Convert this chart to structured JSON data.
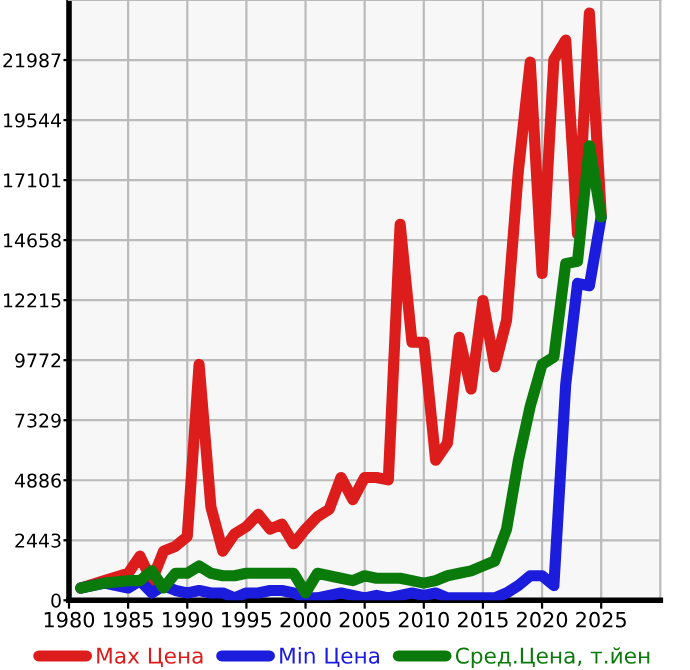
{
  "chart_data": {
    "type": "line",
    "x": [
      1981,
      1983,
      1985,
      1986,
      1987,
      1988,
      1989,
      1990,
      1991,
      1992,
      1993,
      1994,
      1995,
      1996,
      1997,
      1998,
      1999,
      2000,
      2001,
      2002,
      2003,
      2004,
      2005,
      2006,
      2007,
      2008,
      2009,
      2010,
      2011,
      2012,
      2013,
      2014,
      2015,
      2016,
      2017,
      2018,
      2019,
      2020,
      2021,
      2022,
      2023,
      2024,
      2025
    ],
    "series": [
      {
        "name": "Max Цена",
        "color": "#dd1c1c",
        "values": [
          500,
          800,
          1100,
          1800,
          800,
          2000,
          2200,
          2600,
          9600,
          3800,
          2000,
          2700,
          3000,
          3500,
          2900,
          3100,
          2300,
          2900,
          3400,
          3700,
          5000,
          4100,
          5000,
          5000,
          4900,
          15300,
          10500,
          10500,
          5700,
          6400,
          10700,
          8600,
          12200,
          9500,
          11400,
          17500,
          21900,
          13300,
          22000,
          22800,
          14900,
          23900,
          15700
        ]
      },
      {
        "name": "Min Цена",
        "color": "#1c1cdd",
        "values": [
          500,
          700,
          500,
          800,
          300,
          600,
          400,
          300,
          400,
          300,
          300,
          100,
          300,
          300,
          400,
          400,
          300,
          100,
          100,
          200,
          300,
          200,
          100,
          200,
          100,
          200,
          300,
          200,
          300,
          100,
          100,
          100,
          100,
          100,
          300,
          600,
          1000,
          1000,
          600,
          8800,
          12900,
          12800,
          15600
        ]
      },
      {
        "name": "Сред.Цена, т.йен",
        "color": "#0a7a0a",
        "values": [
          500,
          700,
          800,
          800,
          1200,
          500,
          1100,
          1100,
          1400,
          1100,
          1000,
          1000,
          1100,
          1100,
          1100,
          1100,
          1100,
          300,
          1100,
          1000,
          900,
          800,
          1000,
          900,
          900,
          900,
          800,
          700,
          800,
          1000,
          1100,
          1200,
          1400,
          1600,
          2900,
          5700,
          7900,
          9600,
          9900,
          13700,
          13800,
          18500,
          15600
        ]
      }
    ],
    "xlim": [
      1980,
      2030
    ],
    "ylim": [
      0,
      24430
    ],
    "xticks": [
      1980,
      1985,
      1990,
      1995,
      2000,
      2005,
      2010,
      2015,
      2020,
      2025
    ],
    "yticks": [
      0,
      2443,
      4886,
      7329,
      9772,
      12215,
      14658,
      17101,
      19544,
      21987
    ],
    "grid": true,
    "legend": "bottom",
    "marker": "none",
    "line_style": "solid"
  }
}
